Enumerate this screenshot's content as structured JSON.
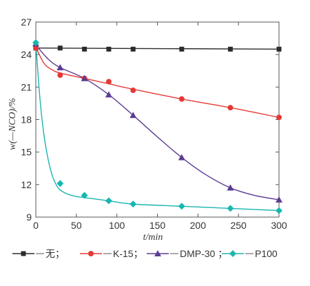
{
  "chart_data": {
    "type": "line",
    "xlabel": "t/min",
    "ylabel": "w(—NCO)/%",
    "xlim": [
      0,
      300
    ],
    "ylim": [
      9,
      27
    ],
    "xticks": [
      0,
      50,
      100,
      150,
      200,
      250,
      300
    ],
    "yticks": [
      9,
      12,
      15,
      18,
      21,
      24,
      27
    ],
    "legend_position": "bottom",
    "legend_text": "无；—K-15；—DMP-30 ；—P100",
    "series": [
      {
        "name": "无",
        "color": "#2b2b2b",
        "marker": "square",
        "points": [
          [
            0,
            24.6
          ],
          [
            30,
            24.6
          ],
          [
            60,
            24.5
          ],
          [
            90,
            24.5
          ],
          [
            120,
            24.5
          ],
          [
            180,
            24.5
          ],
          [
            240,
            24.5
          ],
          [
            300,
            24.5
          ]
        ],
        "curve": [
          [
            0,
            24.6
          ],
          [
            300,
            24.5
          ]
        ]
      },
      {
        "name": "K-15",
        "color": "#e53935",
        "marker": "circle",
        "points": [
          [
            0,
            24.6
          ],
          [
            30,
            22.1
          ],
          [
            60,
            21.8
          ],
          [
            90,
            21.5
          ],
          [
            120,
            20.7
          ],
          [
            180,
            19.9
          ],
          [
            240,
            19.1
          ],
          [
            300,
            18.2
          ]
        ],
        "curve": [
          [
            0,
            24.7
          ],
          [
            10,
            23.2
          ],
          [
            20,
            22.6
          ],
          [
            30,
            22.3
          ],
          [
            60,
            21.8
          ],
          [
            90,
            21.3
          ],
          [
            120,
            20.8
          ],
          [
            180,
            19.9
          ],
          [
            240,
            19.1
          ],
          [
            300,
            18.2
          ]
        ]
      },
      {
        "name": "DMP-30",
        "color": "#5c3c92",
        "marker": "triangle",
        "points": [
          [
            0,
            25.0
          ],
          [
            30,
            22.8
          ],
          [
            60,
            21.8
          ],
          [
            90,
            20.3
          ],
          [
            120,
            18.4
          ],
          [
            180,
            14.5
          ],
          [
            240,
            11.7
          ],
          [
            300,
            10.6
          ]
        ],
        "curve": [
          [
            0,
            24.9
          ],
          [
            15,
            23.6
          ],
          [
            30,
            22.8
          ],
          [
            60,
            21.8
          ],
          [
            90,
            20.3
          ],
          [
            120,
            18.4
          ],
          [
            150,
            16.4
          ],
          [
            180,
            14.5
          ],
          [
            210,
            12.9
          ],
          [
            240,
            11.7
          ],
          [
            270,
            11.0
          ],
          [
            300,
            10.6
          ]
        ]
      },
      {
        "name": "P100",
        "color": "#19b5b0",
        "marker": "diamond",
        "points": [
          [
            0,
            25.1
          ],
          [
            30,
            12.1
          ],
          [
            60,
            11.0
          ],
          [
            90,
            10.5
          ],
          [
            120,
            10.2
          ],
          [
            180,
            10.0
          ],
          [
            240,
            9.8
          ],
          [
            300,
            9.6
          ]
        ],
        "curve": [
          [
            0,
            25.1
          ],
          [
            5,
            20.0
          ],
          [
            10,
            16.6
          ],
          [
            15,
            14.4
          ],
          [
            20,
            12.9
          ],
          [
            25,
            12.0
          ],
          [
            30,
            11.5
          ],
          [
            40,
            11.1
          ],
          [
            50,
            10.9
          ],
          [
            60,
            10.8
          ],
          [
            90,
            10.5
          ],
          [
            120,
            10.2
          ],
          [
            180,
            10.0
          ],
          [
            240,
            9.8
          ],
          [
            300,
            9.6
          ]
        ]
      }
    ]
  }
}
